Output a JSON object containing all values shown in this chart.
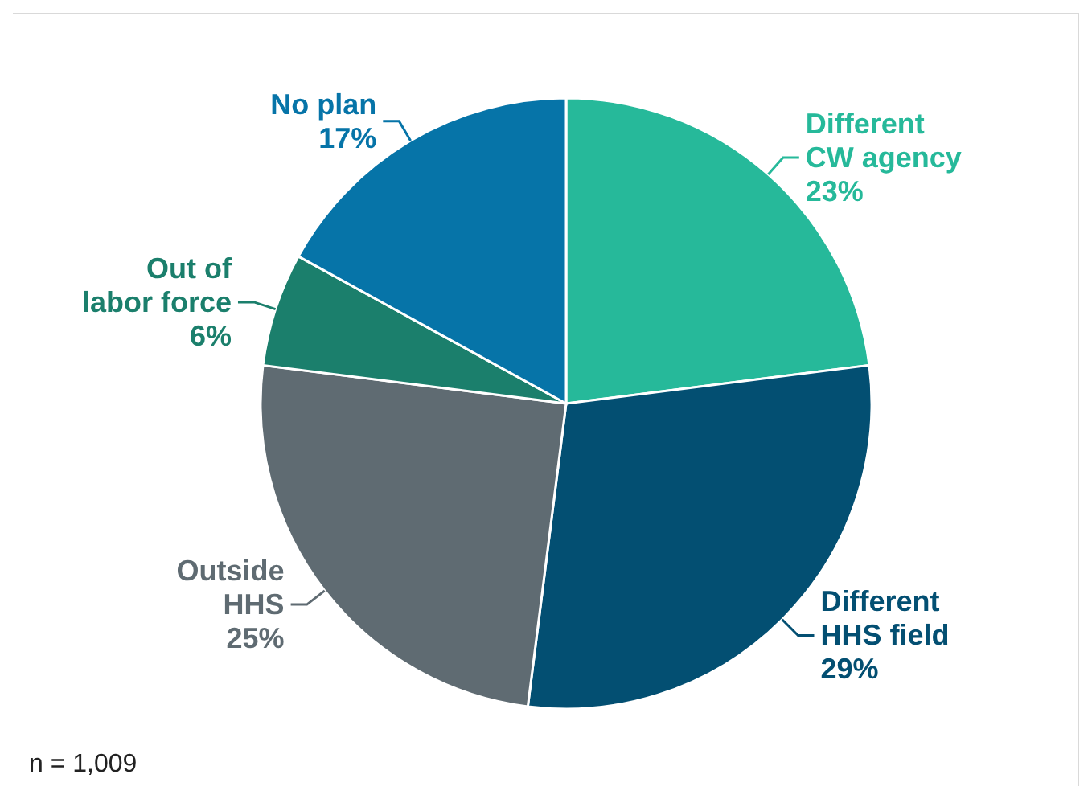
{
  "chart_data": {
    "type": "pie",
    "categories": [
      "Different CW agency",
      "Different HHS field",
      "Outside HHS",
      "Out of labor force",
      "No plan"
    ],
    "values": [
      23,
      29,
      25,
      6,
      17
    ],
    "value_labels": [
      "23%",
      "29%",
      "25%",
      "6%",
      "17%"
    ],
    "colors": [
      "#26b99a",
      "#034f72",
      "#5f6b72",
      "#1b7f6c",
      "#0674a8"
    ],
    "annotations": [
      "n = 1,009"
    ]
  }
}
